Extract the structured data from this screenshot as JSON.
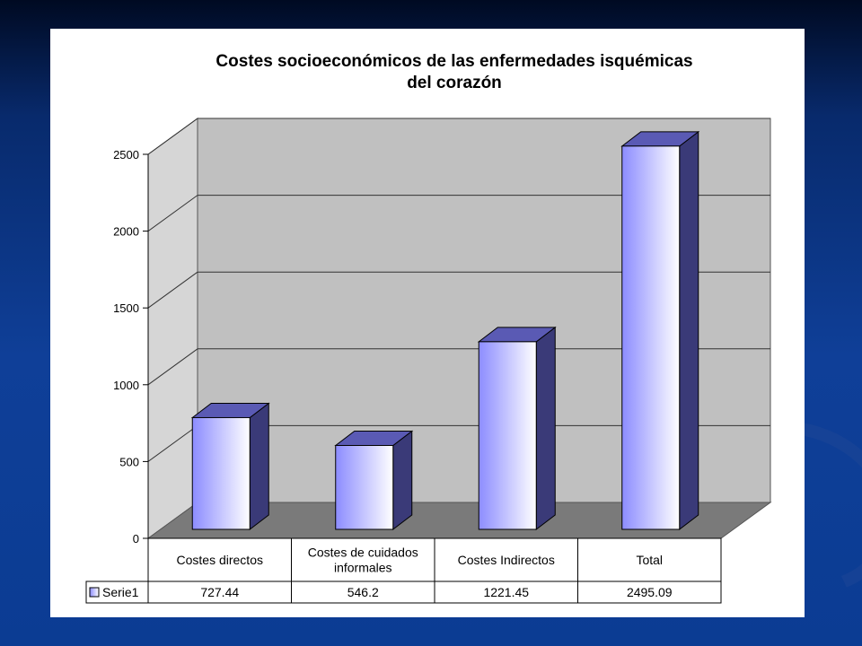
{
  "chart_data": {
    "type": "bar",
    "title": "Costes socioeconómicos de las enfermedades isquémicas del corazón",
    "title_lines": [
      "Costes socioeconómicos de las enfermedades isquémicas",
      "del corazón"
    ],
    "categories": [
      "Costes directos",
      "Costes de cuidados informales",
      "Costes Indirectos",
      "Total"
    ],
    "category_lines": [
      [
        "Costes directos"
      ],
      [
        "Costes de cuidados",
        "informales"
      ],
      [
        "Costes Indirectos"
      ],
      [
        "Total"
      ]
    ],
    "series": [
      {
        "name": "Serie1",
        "values": [
          727.44,
          546.2,
          1221.45,
          2495.09
        ]
      }
    ],
    "value_labels": [
      "727.44",
      "546.2",
      "1221.45",
      "2495.09"
    ],
    "ylim": [
      0,
      2500
    ],
    "yticks": [
      "0",
      "500",
      "1000",
      "1500",
      "2000",
      "2500"
    ],
    "grid": true,
    "data_table": true,
    "style": "3d-columns",
    "colors": {
      "bar_front_light": "#ffffff",
      "bar_front_dark": "#8c8cff",
      "bar_side": "#3a3a78",
      "bar_top": "#5a5ab4",
      "back_wall": "#c0c0c0",
      "side_wall": "#d6d6d6",
      "floor": "#7a7a7a"
    }
  }
}
